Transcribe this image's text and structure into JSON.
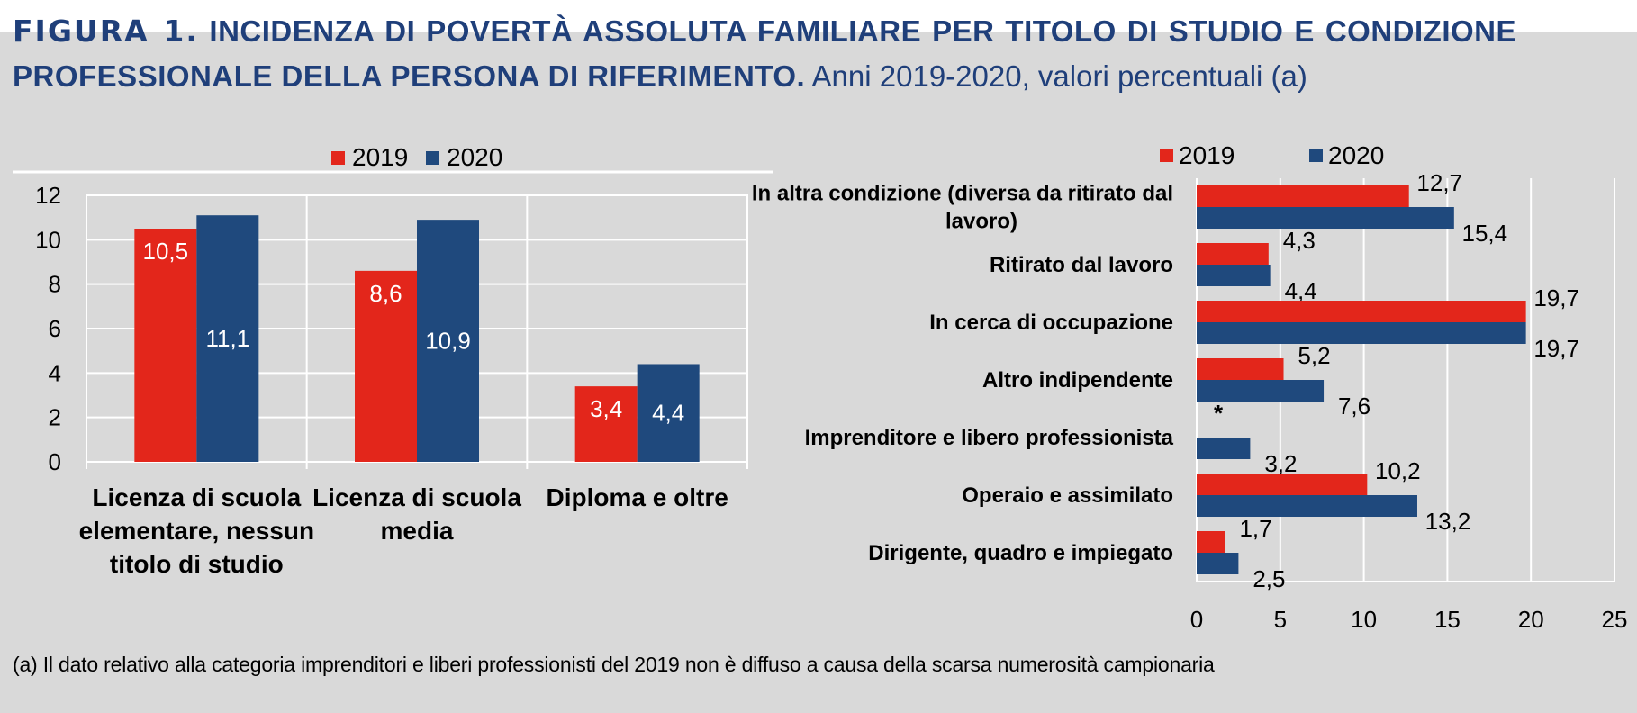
{
  "title": {
    "figure": "FIGURA 1.",
    "bold": "INCIDENZA DI POVERTÀ ASSOLUTA FAMILIARE PER TITOLO DI STUDIO E CONDIZIONE PROFESSIONALE DELLA PERSONA DI RIFERIMENTO.",
    "plain": "Anni 2019-2020, valori percentuali (a)"
  },
  "footnote": "(a) Il dato relativo alla categoria imprenditori e liberi professionisti del 2019 non è diffuso a causa della scarsa numerosità campionaria",
  "colors": {
    "y2019": "#e3261b",
    "y2020": "#1f497d",
    "grid": "#ffffff",
    "axis": "#ffffff"
  },
  "chart_data": [
    {
      "type": "bar",
      "orientation": "vertical",
      "title": "",
      "categories": [
        [
          "Licenza di scuola",
          "elementare, nessun",
          "titolo di studio"
        ],
        [
          "Licenza di scuola",
          "media"
        ],
        [
          "Diploma e oltre"
        ]
      ],
      "series": [
        {
          "name": "2019",
          "values": [
            10.5,
            8.6,
            3.4
          ],
          "labels": [
            "10,5",
            "8,6",
            "3,4"
          ]
        },
        {
          "name": "2020",
          "values": [
            11.1,
            10.9,
            4.4
          ],
          "labels": [
            "11,1",
            "10,9",
            "4,4"
          ]
        }
      ],
      "yticks": [
        "0",
        "2",
        "4",
        "6",
        "8",
        "10",
        "12"
      ],
      "ylim": [
        0,
        12
      ],
      "legend": "top-center",
      "grid": true
    },
    {
      "type": "bar",
      "orientation": "horizontal",
      "title": "",
      "categories": [
        [
          "In altra condizione (diversa da ritirato dal",
          "lavoro)"
        ],
        [
          "Ritirato dal lavoro"
        ],
        [
          "In cerca di occupazione"
        ],
        [
          "Altro indipendente"
        ],
        [
          "Imprenditore e libero professionista"
        ],
        [
          "Operaio e assimilato"
        ],
        [
          "Dirigente, quadro e impiegato"
        ]
      ],
      "series": [
        {
          "name": "2019",
          "values": [
            12.7,
            4.3,
            19.7,
            5.2,
            null,
            10.2,
            1.7
          ],
          "labels": [
            "12,7",
            "4,3",
            "19,7",
            "5,2",
            "*",
            "10,2",
            "1,7"
          ]
        },
        {
          "name": "2020",
          "values": [
            15.4,
            4.4,
            19.7,
            7.6,
            3.2,
            13.2,
            2.5
          ],
          "labels": [
            "15,4",
            "4,4",
            "19,7",
            "7,6",
            "3,2",
            "13,2",
            "2,5"
          ]
        }
      ],
      "xticks": [
        "0",
        "5",
        "10",
        "15",
        "20",
        "25"
      ],
      "xlim": [
        0,
        25
      ],
      "legend": "top-left",
      "grid": true
    }
  ]
}
